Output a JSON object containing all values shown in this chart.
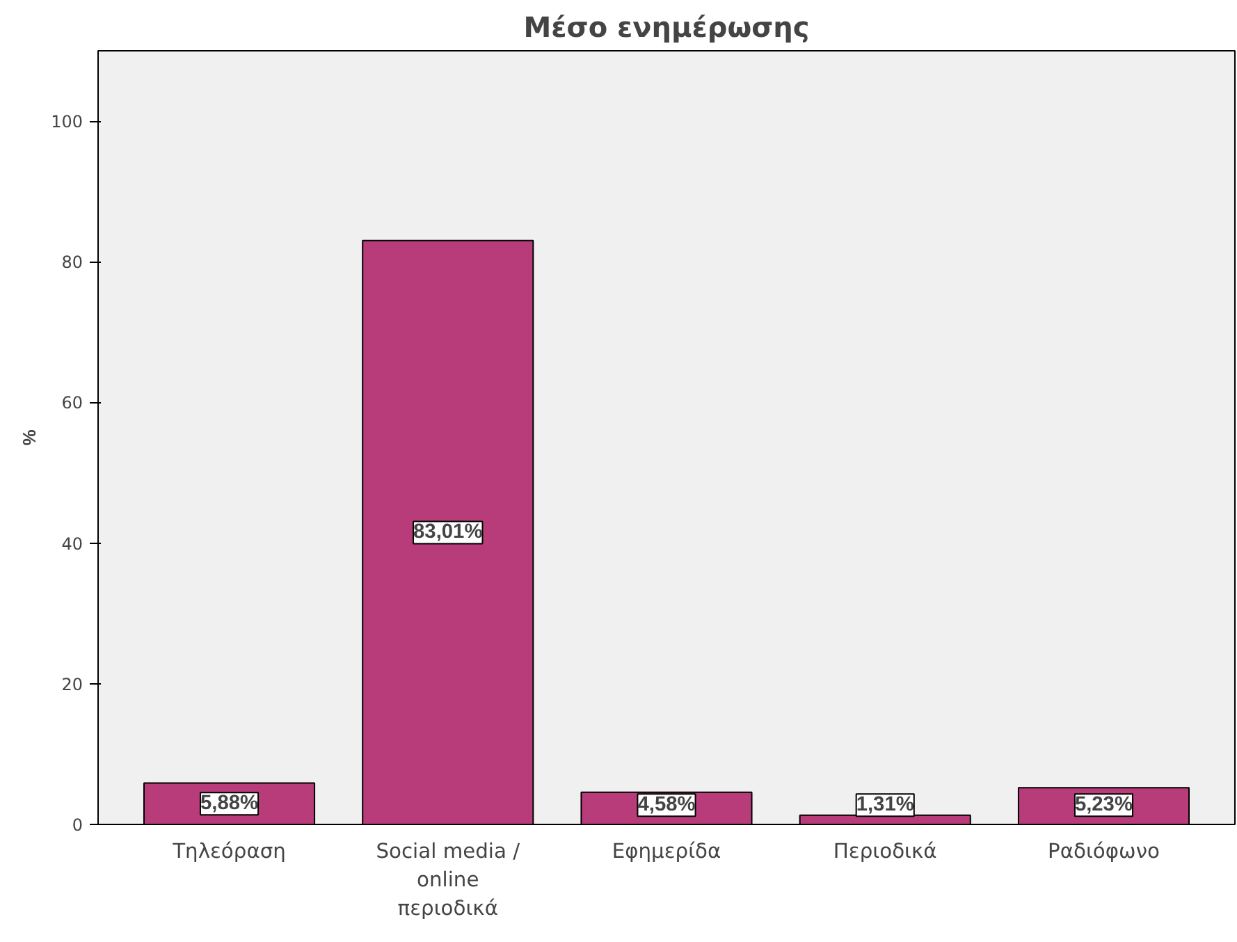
{
  "chart_data": {
    "type": "bar",
    "title": "Μέσο ενημέρωσης",
    "ylabel": "%",
    "categories": [
      "Τηλεόραση",
      "Social media / online περιοδικά",
      "Εφημερίδα",
      "Περιοδικά",
      "Ραδιόφωνο"
    ],
    "values": [
      5.88,
      83.01,
      4.58,
      1.31,
      5.23
    ],
    "value_labels": [
      "5,88%",
      "83,01%",
      "4,58%",
      "1,31%",
      "5,23%"
    ],
    "color": "#b83c7a",
    "ylim": [
      0,
      110
    ],
    "yticks": [
      0,
      20,
      40,
      60,
      80,
      100
    ],
    "grid": false
  }
}
